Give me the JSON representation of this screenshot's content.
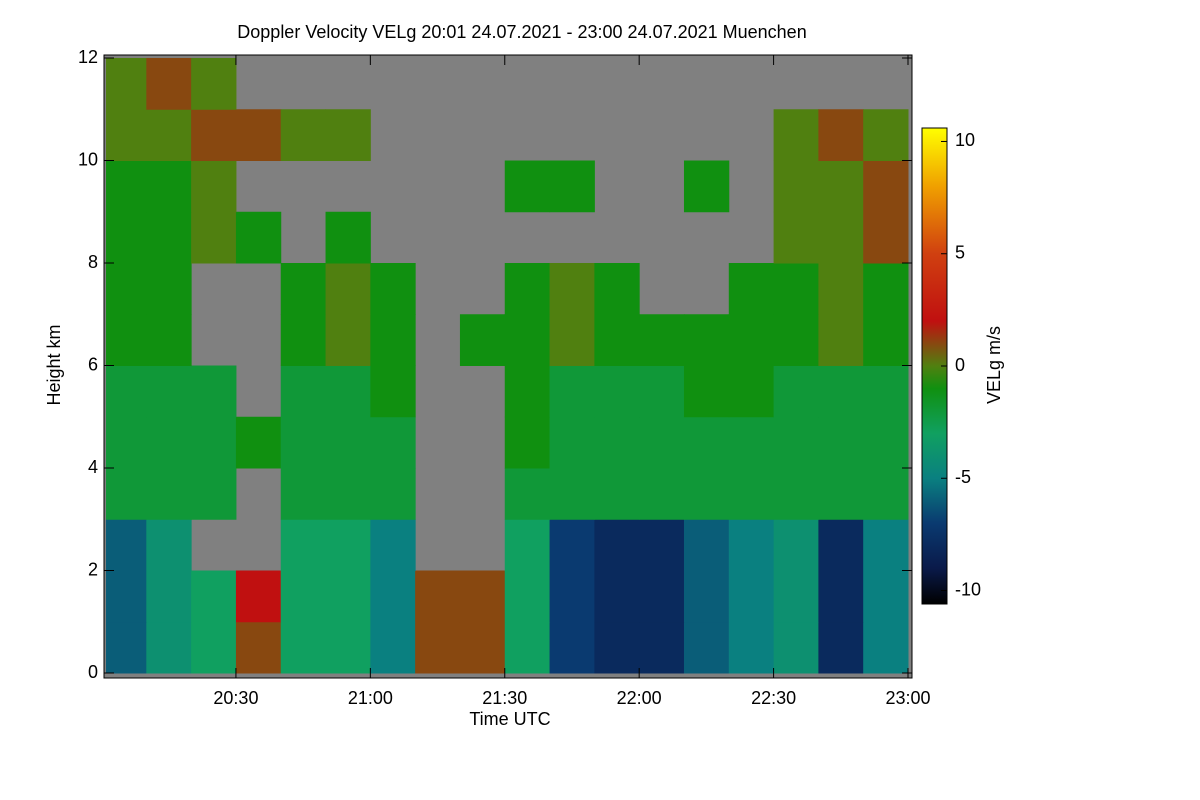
{
  "chart_data": {
    "type": "heatmap",
    "title": "Doppler Velocity VELg   20:01 24.07.2021 - 23:00 24.07.2021 Muenchen",
    "xlabel": "Time UTC",
    "ylabel": "Height km",
    "colorbar_label": "VELg m/s",
    "x": [
      "20:01",
      "20:10",
      "20:20",
      "20:30",
      "20:40",
      "20:50",
      "21:00",
      "21:10",
      "21:20",
      "21:30",
      "21:40",
      "21:50",
      "22:00",
      "22:10",
      "22:20",
      "22:30",
      "22:40",
      "22:50"
    ],
    "xlim": [
      "20:01",
      "23:00"
    ],
    "xticks": [
      "20:30",
      "21:00",
      "21:30",
      "22:00",
      "22:30",
      "23:00"
    ],
    "ybins": [
      0,
      1,
      2,
      3,
      4,
      5,
      6,
      7,
      8,
      9,
      10,
      11,
      12
    ],
    "ylim": [
      0,
      12
    ],
    "yticks": [
      0,
      2,
      4,
      6,
      8,
      10,
      12
    ],
    "zlim": [
      -10.6,
      10.6
    ],
    "zticks": [
      -10,
      -5,
      0,
      5,
      10
    ],
    "colorscale": [
      [
        -10.6,
        "#000000"
      ],
      [
        -9,
        "#0a1a4a"
      ],
      [
        -7,
        "#0a3a70"
      ],
      [
        -5,
        "#0a8080"
      ],
      [
        -3,
        "#10a060"
      ],
      [
        -1,
        "#109010"
      ],
      [
        0,
        "#508010"
      ],
      [
        2,
        "#c01010"
      ],
      [
        5,
        "#d04010"
      ],
      [
        8,
        "#f0a000"
      ],
      [
        10.6,
        "#ffff00"
      ]
    ],
    "missing_color": "#808080",
    "z": [
      [
        -6,
        -4,
        -3,
        1,
        -3,
        -3,
        -5,
        1,
        1,
        -3,
        -7,
        -8,
        -8,
        -6,
        -5,
        -4,
        -8,
        -5
      ],
      [
        -6,
        -4,
        -3,
        2,
        -3,
        -3,
        -5,
        1,
        1,
        -3,
        -7,
        -8,
        -8,
        -6,
        -5,
        -4,
        -8,
        -5
      ],
      [
        -6,
        -4,
        null,
        null,
        -3,
        -3,
        -5,
        null,
        null,
        -3,
        -7,
        -8,
        -8,
        -6,
        -5,
        -4,
        -8,
        -5
      ],
      [
        -2,
        -2,
        -2,
        null,
        -2,
        -2,
        -2,
        null,
        null,
        -2,
        -2,
        -2,
        -2,
        -2,
        -2,
        -2,
        -2,
        -2
      ],
      [
        -2,
        -2,
        -2,
        -1,
        -2,
        -2,
        -2,
        null,
        null,
        -1,
        -2,
        -2,
        -2,
        -2,
        -2,
        -2,
        -2,
        -2
      ],
      [
        -2,
        -2,
        -2,
        null,
        -2,
        -2,
        -1,
        null,
        null,
        -1,
        -2,
        -2,
        -2,
        -1,
        -1,
        -2,
        -2,
        -2
      ],
      [
        -1,
        -1,
        null,
        null,
        -1,
        0,
        -1,
        null,
        -1,
        -1,
        0,
        -1,
        -1,
        -1,
        -1,
        -1,
        0,
        -1
      ],
      [
        -1,
        -1,
        null,
        null,
        -1,
        0,
        -1,
        null,
        null,
        -1,
        0,
        -1,
        null,
        null,
        -1,
        -1,
        0,
        -1
      ],
      [
        -1,
        -1,
        0,
        -1,
        null,
        -1,
        null,
        null,
        null,
        null,
        null,
        null,
        null,
        null,
        null,
        0,
        0,
        1
      ],
      [
        -1,
        -1,
        0,
        null,
        null,
        null,
        null,
        null,
        null,
        -1,
        -1,
        null,
        null,
        -1,
        null,
        0,
        0,
        1
      ],
      [
        0,
        0,
        1,
        1,
        0,
        0,
        null,
        null,
        null,
        null,
        null,
        null,
        null,
        null,
        null,
        0,
        1,
        0
      ],
      [
        0,
        1,
        0,
        null,
        null,
        null,
        null,
        null,
        null,
        null,
        null,
        null,
        null,
        null,
        null,
        null,
        null,
        null
      ]
    ]
  }
}
